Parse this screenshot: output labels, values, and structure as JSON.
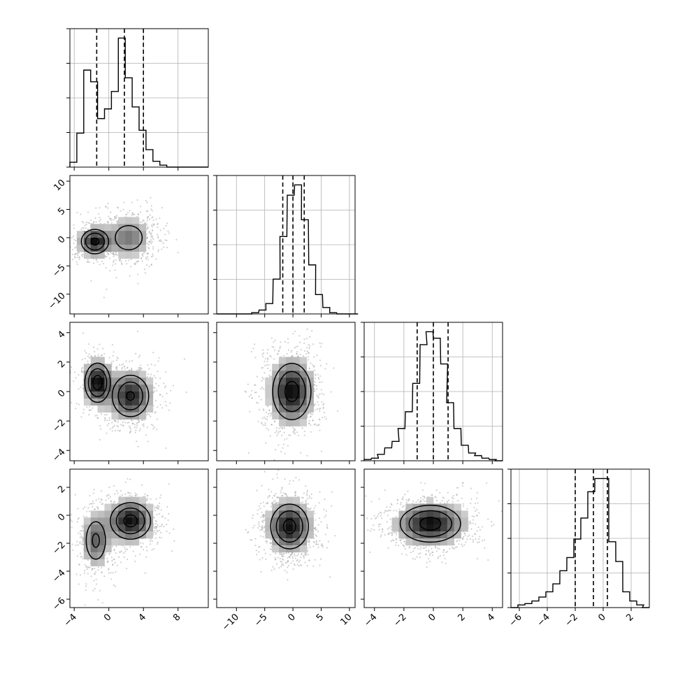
{
  "chart_data": {
    "type": "corner",
    "title": "",
    "grid": true,
    "quantile_lines": "dashed",
    "parameters": [
      {
        "index": 0,
        "range": [
          -4.5,
          11.5
        ],
        "ticks": [
          -4,
          0,
          4,
          8
        ],
        "tick_labels": [
          "−4",
          "0",
          "4",
          "8"
        ],
        "quantiles": [
          -1.4,
          1.8,
          4.0
        ],
        "hist_x": [
          -4.5,
          -3.7,
          -2.9,
          -2.1,
          -1.3,
          -0.5,
          0.3,
          1.1,
          1.9,
          2.7,
          3.5,
          4.3,
          5.1,
          5.9,
          6.7,
          7.5,
          8.3,
          9.1,
          9.9,
          10.7
        ],
        "hist_values": [
          0.05,
          0.35,
          1.0,
          0.88,
          0.5,
          0.6,
          0.78,
          1.33,
          0.92,
          0.62,
          0.38,
          0.18,
          0.06,
          0.02,
          0.0,
          0.0,
          0.0,
          0.0,
          0.0,
          0.0
        ]
      },
      {
        "index": 1,
        "range": [
          -13.5,
          11.0
        ],
        "ticks": [
          -10,
          -5,
          0,
          5,
          10
        ],
        "tick_labels": [
          "−10",
          "−5",
          "0",
          "5",
          "10"
        ],
        "quantiles": [
          -1.8,
          0.0,
          2.0
        ],
        "hist_x": [
          -13.5,
          -12.3,
          -11.0,
          -9.8,
          -8.5,
          -7.3,
          -6.0,
          -4.8,
          -3.5,
          -2.3,
          -1.0,
          0.3,
          1.5,
          2.8,
          4.0,
          5.3,
          6.5,
          7.8,
          9.0,
          10.3
        ],
        "hist_values": [
          0.0,
          0.0,
          0.0,
          0.0,
          0.0,
          0.01,
          0.03,
          0.08,
          0.27,
          0.6,
          0.92,
          1.0,
          0.73,
          0.38,
          0.15,
          0.05,
          0.01,
          0.0,
          0.0,
          0.0
        ]
      },
      {
        "index": 2,
        "range": [
          -4.7,
          4.7
        ],
        "ticks": [
          -4,
          -2,
          0,
          2,
          4
        ],
        "tick_labels": [
          "−4",
          "−2",
          "0",
          "2",
          "4"
        ],
        "quantiles": [
          -1.1,
          0.0,
          1.0
        ],
        "hist_x": [
          -4.7,
          -4.2,
          -3.8,
          -3.3,
          -2.8,
          -2.4,
          -1.9,
          -1.4,
          -0.9,
          -0.5,
          0.0,
          0.5,
          0.9,
          1.4,
          1.9,
          2.4,
          2.8,
          3.3,
          3.8,
          4.2
        ],
        "hist_values": [
          0.01,
          0.02,
          0.05,
          0.1,
          0.15,
          0.25,
          0.38,
          0.6,
          0.9,
          1.0,
          0.95,
          0.75,
          0.45,
          0.25,
          0.12,
          0.06,
          0.04,
          0.02,
          0.01,
          0.0
        ]
      },
      {
        "index": 3,
        "range": [
          -6.6,
          3.3
        ],
        "ticks": [
          -6,
          -4,
          -2,
          0,
          2
        ],
        "tick_labels": [
          "−6",
          "−4",
          "−2",
          "0",
          "2"
        ],
        "quantiles": [
          -2.0,
          -0.7,
          0.3
        ],
        "hist_x": [
          -6.6,
          -6.1,
          -5.6,
          -5.1,
          -4.6,
          -4.1,
          -3.6,
          -3.1,
          -2.6,
          -2.1,
          -1.6,
          -1.1,
          -0.6,
          -0.1,
          0.4,
          0.9,
          1.4,
          1.9,
          2.4,
          2.8
        ],
        "hist_values": [
          0.0,
          0.02,
          0.03,
          0.05,
          0.08,
          0.12,
          0.18,
          0.28,
          0.38,
          0.52,
          0.68,
          0.88,
          0.98,
          0.98,
          0.5,
          0.35,
          0.12,
          0.05,
          0.02,
          0.0
        ]
      }
    ],
    "panels_2d": [
      {
        "x_param": 0,
        "y_param": 1,
        "y_ticks": [
          -10,
          -5,
          0,
          5,
          10
        ],
        "modes": [
          {
            "x": -1.6,
            "y": -0.7,
            "sx": 1.1,
            "sy": 1.5,
            "w": 0.45
          },
          {
            "x": 2.3,
            "y": 0.0,
            "sx": 1.6,
            "sy": 2.2,
            "w": 0.55
          }
        ]
      },
      {
        "x_param": 0,
        "y_param": 2,
        "y_ticks": [
          -4,
          -2,
          0,
          2,
          4
        ],
        "modes": [
          {
            "x": -1.3,
            "y": 0.6,
            "sx": 1.0,
            "sy": 0.9,
            "w": 0.4
          },
          {
            "x": 2.5,
            "y": -0.3,
            "sx": 1.5,
            "sy": 1.0,
            "w": 0.6
          }
        ]
      },
      {
        "x_param": 0,
        "y_param": 3,
        "y_ticks": [
          -6,
          -4,
          -2,
          0,
          2
        ],
        "modes": [
          {
            "x": -1.5,
            "y": -1.8,
            "sx": 1.0,
            "sy": 1.2,
            "w": 0.35
          },
          {
            "x": 2.5,
            "y": -0.4,
            "sx": 1.6,
            "sy": 0.9,
            "w": 0.65
          }
        ]
      },
      {
        "x_param": 1,
        "y_param": 2,
        "modes": [
          {
            "x": -0.2,
            "y": 0.0,
            "sx": 2.3,
            "sy": 1.3,
            "w": 1.0
          }
        ]
      },
      {
        "x_param": 1,
        "y_param": 3,
        "modes": [
          {
            "x": -0.6,
            "y": -0.8,
            "sx": 2.3,
            "sy": 1.1,
            "w": 1.0
          }
        ]
      },
      {
        "x_param": 2,
        "y_param": 3,
        "modes": [
          {
            "x": -0.2,
            "y": -0.6,
            "sx": 1.4,
            "sy": 0.9,
            "w": 1.0
          }
        ]
      }
    ]
  }
}
